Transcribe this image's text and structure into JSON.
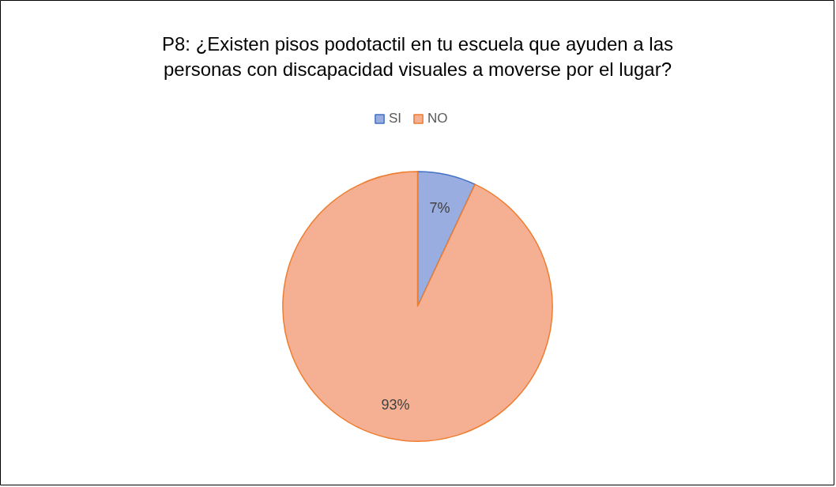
{
  "chart_data": {
    "type": "pie",
    "title": "P8: ¿Existen pisos podotactil en tu escuela que ayuden a las personas con discapacidad visuales a moverse por el lugar?",
    "categories": [
      "SI",
      "NO"
    ],
    "values": [
      7,
      93
    ],
    "colors": [
      "#9aade0",
      "#f5b093"
    ],
    "value_labels": [
      "7%",
      "93%"
    ],
    "legend": "top"
  }
}
